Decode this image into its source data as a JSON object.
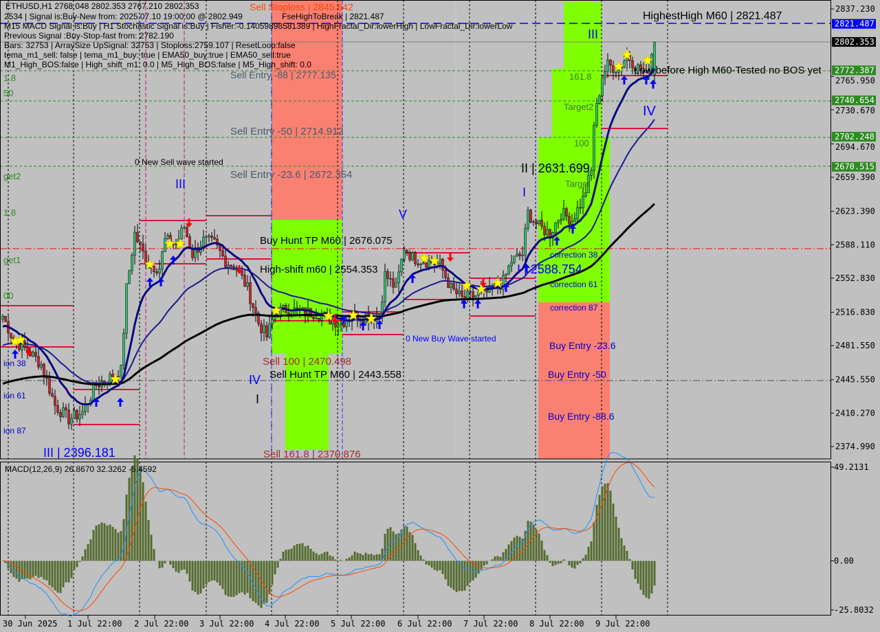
{
  "header": {
    "symbol_line": "ETHUSD,H1  2768.048 2802.353 2767.210 2802.353",
    "lines": [
      "2534 | Signal is:Buy-New from: 2025.07.10 19:00:00 @ 2802.949",
      "M15 MACD Signal is:Buy | H1 Stochastic Signal is:Buy | Fisher:-0.14059898581389 | HighFractal_Dir:lowerHigh | LowFractal_Dir:lowerLow",
      "Previous Signal :Buy-Stop-fast from: 2782.190",
      "Bars: 32753 | ArraySize UpSignal: 32753 | Stoploss:2759.107 | ResetLoop:false",
      "tema_m1_sell: false | tema_m1_buy: true | EMA50_buy:true | EMA50_sell:true",
      "M1_High_BOS:false | High_shift_m1: 0.0 | M5_High_BOS:false | M5_High_shift: 0.0"
    ],
    "overlay": "FseHighToBreak | 2821.487"
  },
  "chart_data": {
    "type": "candlestick",
    "instrument": "ETHUSD",
    "timeframe": "H1",
    "ohlc_last": {
      "open": 2768.048,
      "high": 2802.353,
      "low": 2767.21,
      "close": 2802.353
    },
    "x": [
      "2025-06-30 15:00",
      "2025-06-30 19:00",
      "2025-07-01 00:00",
      "2025-07-01 05:00",
      "2025-07-01 10:00",
      "2025-07-01 15:00",
      "2025-07-01 20:00",
      "2025-07-02 01:00",
      "2025-07-02 06:00",
      "2025-07-02 10:00",
      "2025-07-02 12:00",
      "2025-07-02 15:00",
      "2025-07-02 17:00",
      "2025-07-02 20:00",
      "2025-07-03 00:00",
      "2025-07-03 02:00",
      "2025-07-03 06:00",
      "2025-07-03 09:00",
      "2025-07-03 12:00",
      "2025-07-03 16:00",
      "2025-07-03 20:00",
      "2025-07-04 00:00",
      "2025-07-04 04:00",
      "2025-07-04 08:00",
      "2025-07-04 12:00",
      "2025-07-04 15:00",
      "2025-07-04 18:00",
      "2025-07-04 23:00",
      "2025-07-05 04:00",
      "2025-07-05 09:00",
      "2025-07-05 14:00",
      "2025-07-05 18:00",
      "2025-07-05 22:00",
      "2025-07-06 03:00",
      "2025-07-06 08:00",
      "2025-07-06 10:00",
      "2025-07-06 14:00",
      "2025-07-06 17:00",
      "2025-07-06 20:00",
      "2025-07-07 01:00",
      "2025-07-07 06:00",
      "2025-07-07 10:00",
      "2025-07-07 14:00",
      "2025-07-07 19:00",
      "2025-07-08 00:00",
      "2025-07-08 05:00",
      "2025-07-08 08:00",
      "2025-07-08 12:00",
      "2025-07-08 14:00",
      "2025-07-08 18:00",
      "2025-07-08 22:00",
      "2025-07-09 02:00",
      "2025-07-09 06:00",
      "2025-07-09 10:00",
      "2025-07-09 13:00",
      "2025-07-09 14:00",
      "2025-07-09 17:00",
      "2025-07-09 19:00",
      "2025-07-09 23:00",
      "2025-07-10 02:00",
      "2025-07-10 05:00",
      "2025-07-10 09:00",
      "2025-07-10 12:00"
    ],
    "close": [
      2512.8,
      2487.4,
      2476.5,
      2462.0,
      2418.5,
      2404.0,
      2411.2,
      2440.2,
      2447.5,
      2454.8,
      2541.8,
      2599.9,
      2585.4,
      2567.2,
      2563.6,
      2592.6,
      2589.0,
      2607.2,
      2578.1,
      2592.6,
      2589.0,
      2570.9,
      2563.6,
      2541.8,
      2505.6,
      2491.0,
      2516.4,
      2520.1,
      2516.4,
      2516.4,
      2509.2,
      2505.6,
      2512.8,
      2512.8,
      2512.8,
      2556.4,
      2541.8,
      2585.4,
      2574.5,
      2570.9,
      2567.2,
      2541.8,
      2531.0,
      2534.6,
      2538.2,
      2549.1,
      2570.9,
      2578.1,
      2621.7,
      2607.2,
      2599.9,
      2621.7,
      2614.4,
      2636.2,
      2665.2,
      2716.0,
      2766.8,
      2777.7,
      2774.1,
      2788.6,
      2777.7,
      2766.8,
      2802.353
    ],
    "price_axis": {
      "range": [
        2360,
        2846
      ],
      "ticks": [
        "2837.230",
        "2765.950",
        "2730.670",
        "2694.670",
        "2659.390",
        "2623.390",
        "2588.110",
        "2552.830",
        "2516.830",
        "2481.550",
        "2445.550",
        "2410.270",
        "2374.990"
      ]
    },
    "price_tags": [
      {
        "value": "2821.487",
        "color": "#0000ff"
      },
      {
        "value": "2802.353",
        "color": "#000000"
      },
      {
        "value": "2772.387",
        "color": "#2e8b22"
      },
      {
        "value": "2740.654",
        "color": "#2e8b22"
      },
      {
        "value": "2702.248",
        "color": "#2e8b22"
      },
      {
        "value": "2670.515",
        "color": "#2e8b22"
      }
    ],
    "time_axis": [
      "30 Jun 2025",
      "1 Jul 22:00",
      "2 Jul 22:00",
      "3 Jul 22:00",
      "4 Jul 22:00",
      "5 Jul 22:00",
      "6 Jul 22:00",
      "7 Jul 22:00",
      "8 Jul 22:00",
      "9 Jul 22:00"
    ],
    "indicators": {
      "ma_colors": {
        "fast": "#0a0a80",
        "slow": "#1a1a90",
        "long": "#000000"
      }
    },
    "macd": {
      "label": "MACD(12,26,9) 26.8670 32.3262 -5.4592",
      "params": [
        12,
        26,
        9
      ],
      "values": {
        "main": 26.867,
        "signal": 32.3262,
        "histogram": -5.4592
      },
      "range": [
        -25.8032,
        49.2131
      ],
      "ticks": [
        "49.2131",
        "0.00",
        "-25.8032"
      ],
      "colors": {
        "main": "#1e90ff",
        "signal": "#ff4500",
        "histogram": "#556b2f"
      }
    }
  },
  "annotations": {
    "sell_stoploss": "Sell Stoploss | 2845.642",
    "sell_entry_88": "Sell Entry -88 | 2777.135",
    "sell_entry_50": "Sell Entry -50 | 2714.912",
    "sell_entry_236": "Sell Entry -23.6 | 2672.354",
    "new_sell_wave": "0 New Sell wave started",
    "wave_iii_a": "III",
    "buy_hunt_tp": "Buy Hunt TP M60 | 2676.075",
    "high_shift": "High-shift m60 | 2554.353",
    "sell_100": "Sell 100 | 2470.498",
    "sell_hunt_tp": "Sell Hunt TP M60 | 2443.558",
    "wave_iv_a": "IV",
    "wave_i_a": "I",
    "sell_1618": "Sell 161.8 | 2370.876",
    "wave_iii_low": "III | 2396.181",
    "new_buy_wave": "0 New Buy Wave started",
    "wave_v": "V",
    "wave_i_b": "I",
    "wave_ii": "II | 2631.699",
    "wave_i_level": "I | 2588.754",
    "highest_high": "HighestHigh   M60 | 2821.487",
    "wave_iii_b": "III",
    "low_before_high": "Low before High  M60-Tested no BOS yet",
    "wave_iv_b": "IV",
    "fib_1618": "161.8",
    "target2": "Target2",
    "fib_100": "100",
    "target1": "Target",
    "correction_38": "correction 38",
    "correction_61": "correction 61",
    "correction_87": "correction 87",
    "buy_entry_236": "Buy Entry -23.6",
    "buy_entry_50": "Buy Entry -50",
    "buy_entry_886": "Buy Entry -88.6",
    "left_1618a": "1.8",
    "left_50": "50",
    "left_target2": "get2",
    "left_1618b": "1.8",
    "left_target1": "get1",
    "left_100": "00",
    "left_corr38": "ion 38",
    "left_corr61": "ion 61",
    "left_corr87": "ion 87"
  },
  "colors": {
    "background": "#c0c0c0",
    "buy_zone": "#7fff00",
    "sell_zone": "#fa8072",
    "level_red": "#dc143c",
    "fib_green": "#228b22"
  }
}
